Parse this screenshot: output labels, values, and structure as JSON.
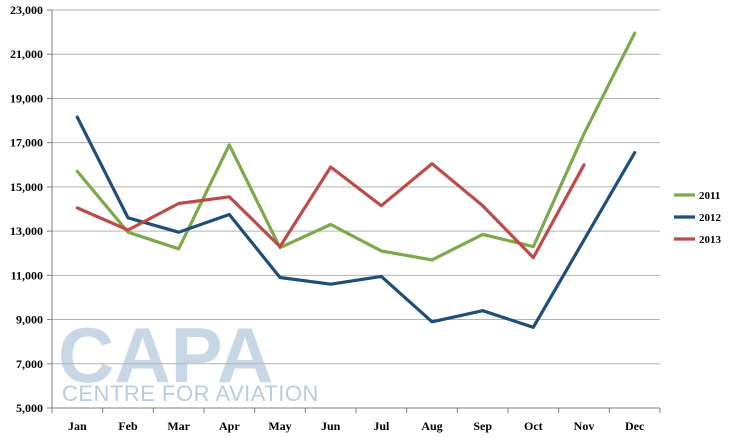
{
  "chart_data": {
    "type": "line",
    "categories": [
      "Jan",
      "Feb",
      "Mar",
      "Apr",
      "May",
      "Jun",
      "Jul",
      "Aug",
      "Sep",
      "Oct",
      "Nov",
      "Dec"
    ],
    "series": [
      {
        "name": "2011",
        "color": "#7ea84a",
        "values": [
          15700,
          12950,
          12200,
          16900,
          12250,
          13300,
          12100,
          11700,
          12850,
          12300,
          17400,
          21950
        ]
      },
      {
        "name": "2012",
        "color": "#1f4e79",
        "values": [
          18150,
          13600,
          12950,
          13750,
          10900,
          10600,
          10950,
          8900,
          9400,
          8650,
          null,
          16550
        ]
      },
      {
        "name": "2013",
        "color": "#be4b48",
        "values": [
          14050,
          13050,
          14250,
          14550,
          12300,
          15900,
          14150,
          16050,
          14150,
          11800,
          16000,
          null
        ]
      }
    ],
    "ylim": [
      5000,
      23000
    ],
    "yticks": [
      5000,
      7000,
      9000,
      11000,
      13000,
      15000,
      17000,
      19000,
      21000,
      23000
    ],
    "ytick_labels": [
      "5,000",
      "7,000",
      "9,000",
      "11,000",
      "13,000",
      "15,000",
      "17,000",
      "19,000",
      "21,000",
      "23,000"
    ],
    "grid": true,
    "legend": "right",
    "title": "",
    "xlabel": "",
    "ylabel": ""
  },
  "watermark": {
    "main": "CAPA",
    "sub": "CENTRE FOR AVIATION"
  }
}
